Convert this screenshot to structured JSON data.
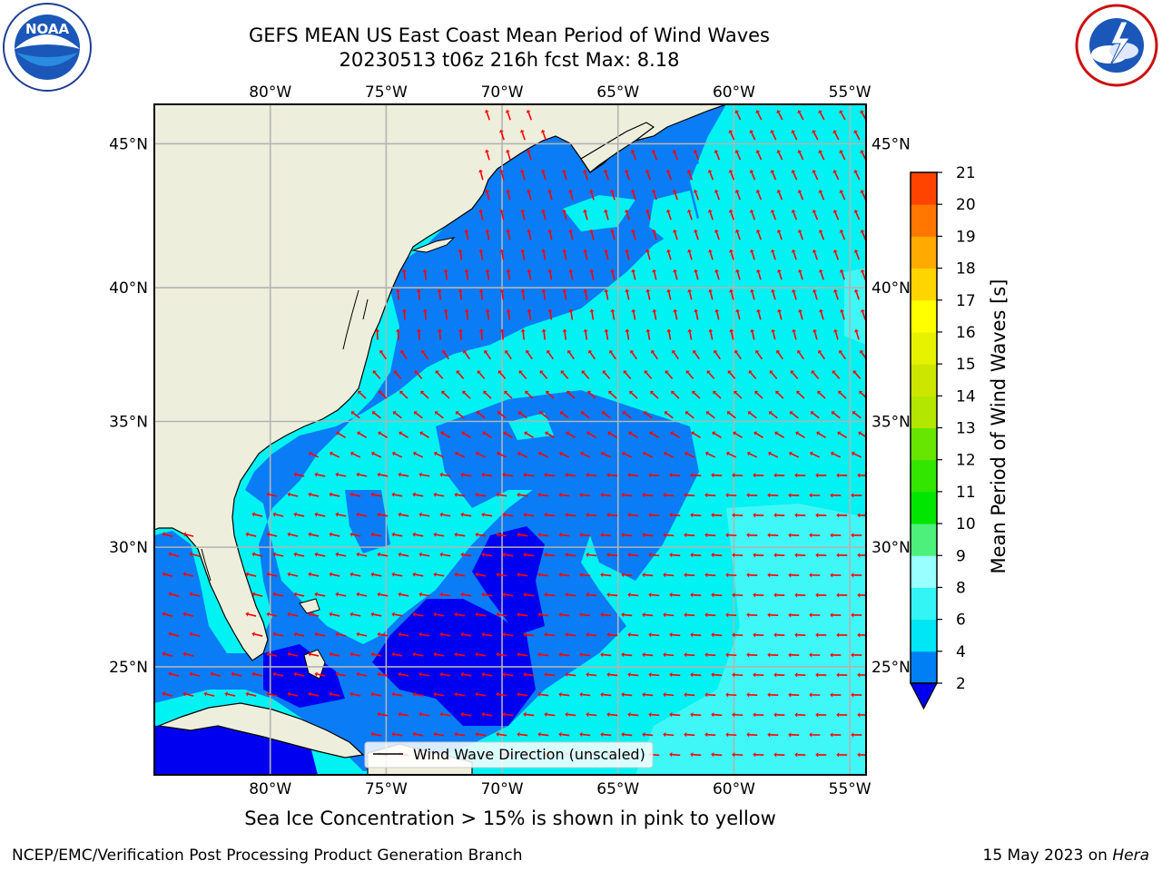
{
  "title": {
    "line1": "GEFS MEAN US East Coast Mean Period of Wind Waves",
    "line2": "20230513 t06z 216h fcst   Max: 8.18"
  },
  "logos": {
    "left": {
      "text": "NOAA",
      "icon": "noaa-logo-icon"
    },
    "right": {
      "icon": "nws-logo-icon"
    }
  },
  "map": {
    "lon_labels": [
      "80°W",
      "75°W",
      "70°W",
      "65°W",
      "60°W",
      "55°W"
    ],
    "lat_labels": [
      "45°N",
      "40°N",
      "35°N",
      "30°N",
      "25°N"
    ],
    "lon_values": [
      -80,
      -75,
      -70,
      -65,
      -60,
      -55
    ],
    "lat_values": [
      45,
      40,
      35,
      30,
      25
    ],
    "lon_range": [
      -85,
      -54.3
    ],
    "lat_range": [
      20.3,
      46.3
    ],
    "legend_label": "Wind Wave Direction (unscaled)",
    "colors": {
      "land": "#eeeedc",
      "band_2_4": "#0a7cf5",
      "band_0_2": "#0000f0",
      "band_4_6": "#00f2f2",
      "band_6_8": "#40f7f7",
      "arrow": "#ff0000",
      "grid": "#b3b3b3"
    }
  },
  "colorbar": {
    "label": "Mean Period of Wind Waves [s]",
    "ticks": [
      "2",
      "4",
      "6",
      "8",
      "9",
      "10",
      "11",
      "12",
      "13",
      "14",
      "15",
      "16",
      "17",
      "18",
      "19",
      "20",
      "21"
    ],
    "colors": [
      "#007ff5",
      "#00e6f5",
      "#33f5f5",
      "#99ffff",
      "#4cf07a",
      "#00e600",
      "#33e600",
      "#66e600",
      "#b3e600",
      "#cce600",
      "#e6f200",
      "#ffff00",
      "#ffd500",
      "#ffaa00",
      "#ff7700",
      "#ff4400",
      "#ff0000"
    ],
    "extend_color": "#0000ee"
  },
  "footer": {
    "sea_ice": "Sea Ice Concentration > 15% is shown in pink to yellow",
    "left": "NCEP/EMC/Verification Post Processing Product Generation Branch",
    "right_date": "15 May 2023 on",
    "right_machine": "Hera"
  }
}
